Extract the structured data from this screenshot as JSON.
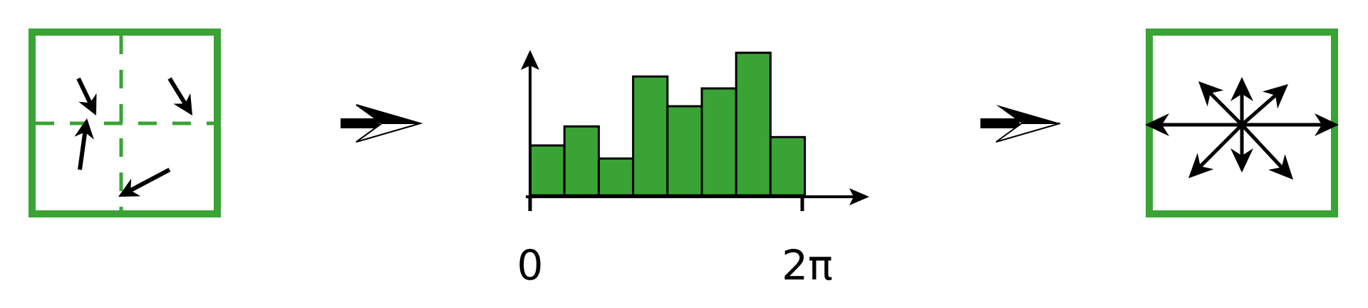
{
  "colors": {
    "green": "#3aa335",
    "black": "#000000",
    "background": "#ffffff"
  },
  "left_panel": {
    "icons": [
      "square-frame",
      "dashed-grid",
      "arrow-icon"
    ]
  },
  "transition_arrows": [
    "arrow-right-icon",
    "arrow-right-icon"
  ],
  "chart_data": {
    "type": "bar",
    "x_tick_labels": [
      "0",
      "2π"
    ],
    "values": [
      2.1,
      2.9,
      1.55,
      5.0,
      3.75,
      4.5,
      6.0,
      2.45
    ],
    "ylim": [
      0,
      6.5
    ],
    "bar_color": "#3aa335"
  },
  "right_panel": {
    "icons": [
      "square-frame",
      "star-arrow-icon"
    ]
  }
}
